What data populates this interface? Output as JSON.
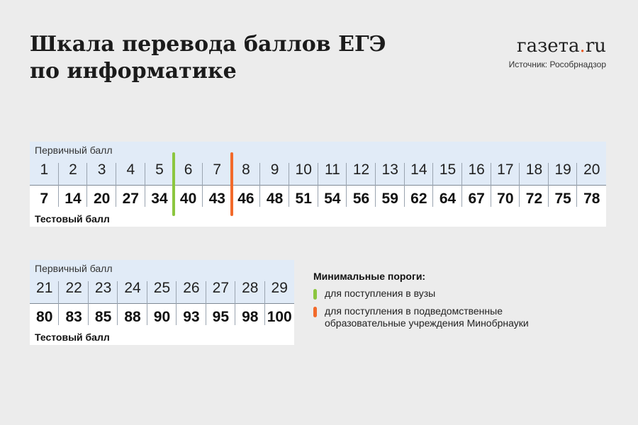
{
  "header": {
    "title_line1": "Шкала перевода баллов ЕГЭ",
    "title_line2": "по информатике",
    "logo_main": "газета",
    "logo_dot": ".",
    "logo_tld": "ru",
    "source": "Источник: Рособрнадзор"
  },
  "labels": {
    "primary": "Первичный балл",
    "test": "Тестовый балл"
  },
  "legend": {
    "title": "Минимальные пороги:",
    "green_label": "для поступления в вузы",
    "orange_label_line1": "для поступления в подведомственные",
    "orange_label_line2": "образовательные учреждения Минобрнауки"
  },
  "colors": {
    "green": "#8cc63f",
    "orange": "#f26a2b",
    "primary_band": "#e1ebf7"
  },
  "chart_data": {
    "type": "table",
    "xlabel": "Первичный балл",
    "ylabel": "Тестовый балл",
    "rows": [
      {
        "primary": [
          1,
          2,
          3,
          4,
          5,
          6,
          7,
          8,
          9,
          10,
          11,
          12,
          13,
          14,
          15,
          16,
          17,
          18,
          19,
          20
        ],
        "test": [
          7,
          14,
          20,
          27,
          34,
          40,
          43,
          46,
          48,
          51,
          54,
          56,
          59,
          62,
          64,
          67,
          70,
          72,
          75,
          78
        ]
      },
      {
        "primary": [
          21,
          22,
          23,
          24,
          25,
          26,
          27,
          28,
          29
        ],
        "test": [
          80,
          83,
          85,
          88,
          90,
          93,
          95,
          98,
          100
        ]
      }
    ],
    "thresholds": [
      {
        "after_primary": 5,
        "color": "green",
        "label": "для поступления в вузы"
      },
      {
        "after_primary": 7,
        "color": "orange",
        "label": "для поступления в подведомственные образовательные учреждения Минобрнауки"
      }
    ]
  }
}
